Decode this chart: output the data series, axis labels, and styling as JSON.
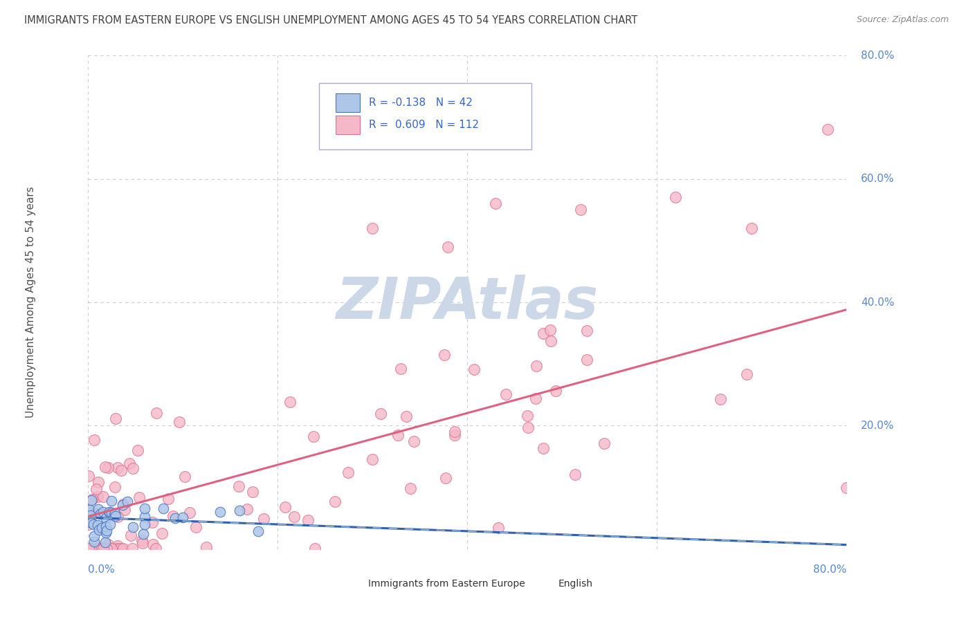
{
  "title": "IMMIGRANTS FROM EASTERN EUROPE VS ENGLISH UNEMPLOYMENT AMONG AGES 45 TO 54 YEARS CORRELATION CHART",
  "source": "Source: ZipAtlas.com",
  "ylabel": "Unemployment Among Ages 45 to 54 years",
  "legend1_label": "Immigrants from Eastern Europe",
  "legend2_label": "English",
  "R1": -0.138,
  "N1": 42,
  "R2": 0.609,
  "N2": 112,
  "blue_face": "#aec6e8",
  "blue_edge": "#4472c4",
  "pink_face": "#f4b8c8",
  "pink_edge": "#e07090",
  "blue_trend_color": "#3060b0",
  "pink_trend_color": "#e06080",
  "blue_dash_color": "#88aacc",
  "bg_color": "#ffffff",
  "watermark_color": "#ccd8e8",
  "title_color": "#404040",
  "axis_tick_color": "#5588cc",
  "legend_text_color": "#3366cc",
  "grid_color": "#cccccc",
  "grid_style": "--"
}
